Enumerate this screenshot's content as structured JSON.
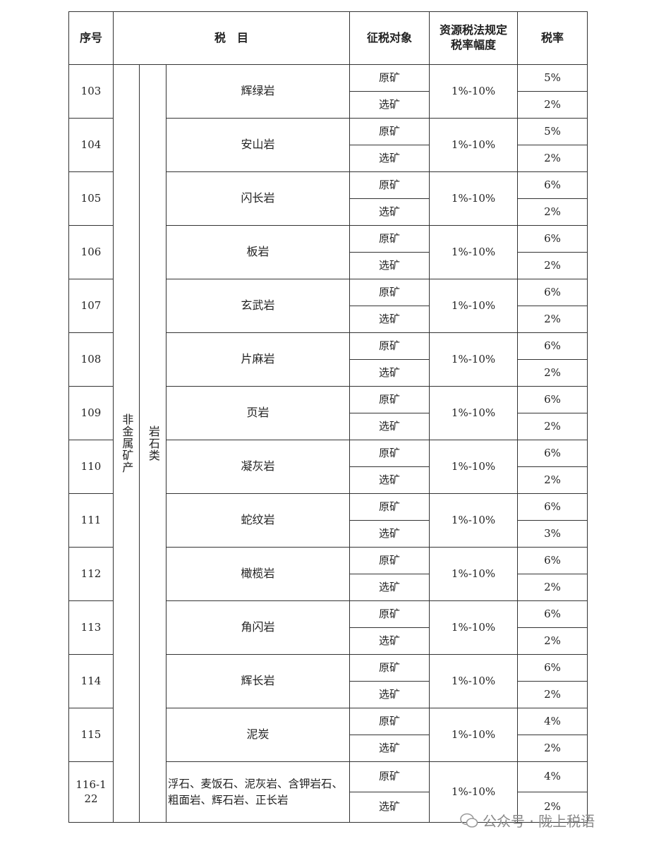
{
  "header": {
    "index": "序号",
    "item": "税　目",
    "object": "征税对象",
    "range_lines": [
      "资源税法规定",
      "税率幅度"
    ],
    "rate": "税率"
  },
  "category": "非金属矿产",
  "subcategory": "岩石类",
  "rows": [
    {
      "index": "103",
      "name": "辉绿岩",
      "range": "1%-10%",
      "items": [
        {
          "object": "原矿",
          "rate": "5%"
        },
        {
          "object": "选矿",
          "rate": "2%"
        }
      ]
    },
    {
      "index": "104",
      "name": "安山岩",
      "range": "1%-10%",
      "items": [
        {
          "object": "原矿",
          "rate": "5%"
        },
        {
          "object": "选矿",
          "rate": "2%"
        }
      ]
    },
    {
      "index": "105",
      "name": "闪长岩",
      "range": "1%-10%",
      "items": [
        {
          "object": "原矿",
          "rate": "6%"
        },
        {
          "object": "选矿",
          "rate": "2%"
        }
      ]
    },
    {
      "index": "106",
      "name": "板岩",
      "range": "1%-10%",
      "items": [
        {
          "object": "原矿",
          "rate": "6%"
        },
        {
          "object": "选矿",
          "rate": "2%"
        }
      ]
    },
    {
      "index": "107",
      "name": "玄武岩",
      "range": "1%-10%",
      "items": [
        {
          "object": "原矿",
          "rate": "6%"
        },
        {
          "object": "选矿",
          "rate": "2%"
        }
      ]
    },
    {
      "index": "108",
      "name": "片麻岩",
      "range": "1%-10%",
      "items": [
        {
          "object": "原矿",
          "rate": "6%"
        },
        {
          "object": "选矿",
          "rate": "2%"
        }
      ]
    },
    {
      "index": "109",
      "name": "页岩",
      "range": "1%-10%",
      "items": [
        {
          "object": "原矿",
          "rate": "6%"
        },
        {
          "object": "选矿",
          "rate": "2%"
        }
      ]
    },
    {
      "index": "110",
      "name": "凝灰岩",
      "range": "1%-10%",
      "items": [
        {
          "object": "原矿",
          "rate": "6%"
        },
        {
          "object": "选矿",
          "rate": "2%"
        }
      ]
    },
    {
      "index": "111",
      "name": "蛇纹岩",
      "range": "1%-10%",
      "items": [
        {
          "object": "原矿",
          "rate": "6%"
        },
        {
          "object": "选矿",
          "rate": "3%"
        }
      ]
    },
    {
      "index": "112",
      "name": "橄榄岩",
      "range": "1%-10%",
      "items": [
        {
          "object": "原矿",
          "rate": "6%"
        },
        {
          "object": "选矿",
          "rate": "2%"
        }
      ]
    },
    {
      "index": "113",
      "name": "角闪岩",
      "range": "1%-10%",
      "items": [
        {
          "object": "原矿",
          "rate": "6%"
        },
        {
          "object": "选矿",
          "rate": "2%"
        }
      ]
    },
    {
      "index": "114",
      "name": "辉长岩",
      "range": "1%-10%",
      "items": [
        {
          "object": "原矿",
          "rate": "6%"
        },
        {
          "object": "选矿",
          "rate": "2%"
        }
      ]
    },
    {
      "index": "115",
      "name": "泥炭",
      "range": "1%-10%",
      "items": [
        {
          "object": "原矿",
          "rate": "4%"
        },
        {
          "object": "选矿",
          "rate": "2%"
        }
      ]
    },
    {
      "index": "116-122",
      "name": "浮石、麦饭石、泥灰岩、含钾岩石、粗面岩、辉石岩、正长岩",
      "range": "1%-10%",
      "items": [
        {
          "object": "原矿",
          "rate": "4%"
        },
        {
          "object": "选矿",
          "rate": "2%"
        }
      ]
    }
  ],
  "watermark": "公众号 · 陇上税语"
}
